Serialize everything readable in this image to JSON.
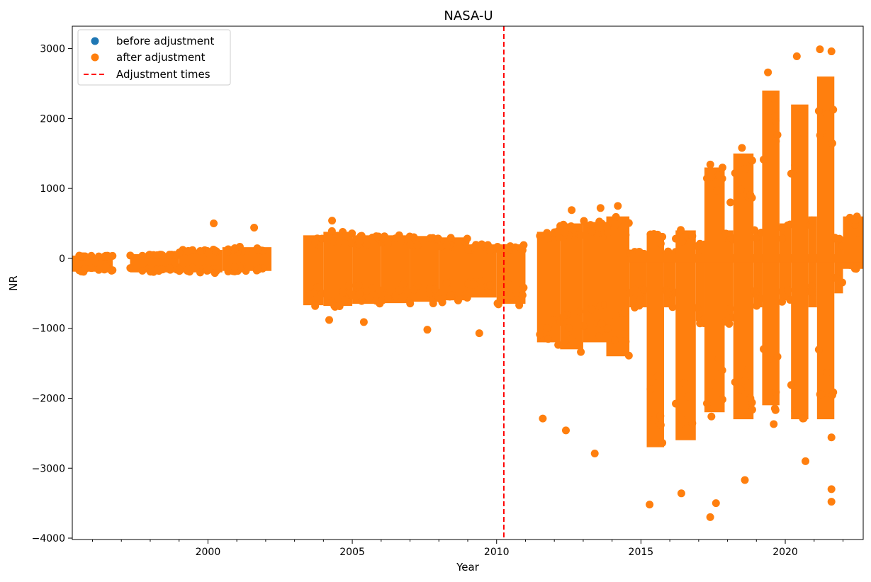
{
  "chart_data": {
    "type": "scatter",
    "title": "NASA-U",
    "xlabel": "Year",
    "ylabel": "NR",
    "xlim": [
      1995.3,
      2022.7
    ],
    "ylim": [
      -4020,
      3320
    ],
    "x_ticks": [
      2000,
      2005,
      2010,
      2015,
      2020
    ],
    "y_ticks": [
      -4000,
      -3000,
      -2000,
      -1000,
      0,
      1000,
      2000,
      3000
    ],
    "x_tick_labels": [
      "2000",
      "2005",
      "2010",
      "2015",
      "2020"
    ],
    "y_tick_labels": [
      "−4000",
      "−3000",
      "−2000",
      "−1000",
      "0",
      "1000",
      "2000",
      "3000"
    ],
    "minor_x_ticks": true,
    "grid": false,
    "legend_position": "top-left",
    "legend": [
      {
        "label": "before adjustment",
        "marker": "dot",
        "color": "#1f77b4"
      },
      {
        "label": "after adjustment",
        "marker": "dot",
        "color": "#ff7f0e"
      },
      {
        "label": "Adjustment times",
        "marker": "dashed-line",
        "color": "#ff0000"
      }
    ],
    "adjustment_times": [
      2010.25
    ],
    "series": [
      {
        "name": "before adjustment",
        "color": "#1f77b4",
        "note_hidden_beneath": true
      },
      {
        "name": "after adjustment",
        "color": "#ff7f0e",
        "envelope": [
          {
            "x0": 1995.3,
            "x1": 1996.7,
            "low": -190,
            "high": 40
          },
          {
            "x0": 1997.3,
            "x1": 1999.0,
            "low": -200,
            "high": 60
          },
          {
            "x0": 1999.0,
            "x1": 2000.5,
            "low": -200,
            "high": 120
          },
          {
            "x0": 2000.5,
            "x1": 2002.2,
            "low": -180,
            "high": 160
          },
          {
            "x0": 2003.3,
            "x1": 2004.0,
            "low": -670,
            "high": 330
          },
          {
            "x0": 2004.0,
            "x1": 2005.0,
            "low": -680,
            "high": 380
          },
          {
            "x0": 2005.0,
            "x1": 2006.0,
            "low": -650,
            "high": 330
          },
          {
            "x0": 2006.0,
            "x1": 2007.0,
            "low": -640,
            "high": 330
          },
          {
            "x0": 2007.0,
            "x1": 2008.0,
            "low": -620,
            "high": 320
          },
          {
            "x0": 2008.0,
            "x1": 2009.0,
            "low": -600,
            "high": 300
          },
          {
            "x0": 2009.0,
            "x1": 2010.0,
            "low": -560,
            "high": 200
          },
          {
            "x0": 2010.0,
            "x1": 2011.0,
            "low": -650,
            "high": 200
          },
          {
            "x0": 2011.4,
            "x1": 2012.2,
            "low": -1200,
            "high": 380
          },
          {
            "x0": 2012.2,
            "x1": 2013.0,
            "low": -1300,
            "high": 500
          },
          {
            "x0": 2013.0,
            "x1": 2013.8,
            "low": -1200,
            "high": 520
          },
          {
            "x0": 2013.8,
            "x1": 2014.6,
            "low": -1400,
            "high": 600
          },
          {
            "x0": 2014.6,
            "x1": 2015.2,
            "low": -700,
            "high": 100
          },
          {
            "x0": 2015.2,
            "x1": 2015.8,
            "low": -2700,
            "high": 350
          },
          {
            "x0": 2015.8,
            "x1": 2016.2,
            "low": -700,
            "high": 100
          },
          {
            "x0": 2016.2,
            "x1": 2016.9,
            "low": -2600,
            "high": 400
          },
          {
            "x0": 2016.9,
            "x1": 2017.2,
            "low": -900,
            "high": 200
          },
          {
            "x0": 2017.2,
            "x1": 2017.9,
            "low": -2200,
            "high": 1300
          },
          {
            "x0": 2017.9,
            "x1": 2018.2,
            "low": -900,
            "high": 400
          },
          {
            "x0": 2018.2,
            "x1": 2018.9,
            "low": -2300,
            "high": 1500
          },
          {
            "x0": 2018.9,
            "x1": 2019.2,
            "low": -700,
            "high": 400
          },
          {
            "x0": 2019.2,
            "x1": 2019.8,
            "low": -2100,
            "high": 2400
          },
          {
            "x0": 2019.8,
            "x1": 2020.2,
            "low": -600,
            "high": 500
          },
          {
            "x0": 2020.2,
            "x1": 2020.8,
            "low": -2300,
            "high": 2200
          },
          {
            "x0": 2020.8,
            "x1": 2021.1,
            "low": -700,
            "high": 600
          },
          {
            "x0": 2021.1,
            "x1": 2021.7,
            "low": -2300,
            "high": 2600
          },
          {
            "x0": 2021.7,
            "x1": 2022.0,
            "low": -500,
            "high": 300
          },
          {
            "x0": 2022.0,
            "x1": 2022.7,
            "low": -150,
            "high": 600
          }
        ],
        "outliers": [
          [
            2000.2,
            500
          ],
          [
            2001.6,
            440
          ],
          [
            2004.3,
            540
          ],
          [
            2004.2,
            -880
          ],
          [
            2005.4,
            -910
          ],
          [
            2007.6,
            -1020
          ],
          [
            2009.4,
            -1070
          ],
          [
            2012.6,
            690
          ],
          [
            2013.4,
            -2790
          ],
          [
            2013.6,
            720
          ],
          [
            2014.2,
            750
          ],
          [
            2011.6,
            -2290
          ],
          [
            2012.4,
            -2460
          ],
          [
            2015.3,
            -3520
          ],
          [
            2016.4,
            -3360
          ],
          [
            2017.4,
            -3700
          ],
          [
            2017.6,
            -3500
          ],
          [
            2018.6,
            -3170
          ],
          [
            2019.4,
            2660
          ],
          [
            2019.6,
            2290
          ],
          [
            2019.6,
            -2370
          ],
          [
            2020.4,
            2890
          ],
          [
            2020.7,
            -2900
          ],
          [
            2021.2,
            2990
          ],
          [
            2021.6,
            2960
          ],
          [
            2021.6,
            -3300
          ],
          [
            2021.6,
            -3480
          ],
          [
            2021.6,
            -2560
          ],
          [
            2018.1,
            800
          ],
          [
            2018.5,
            1580
          ]
        ]
      }
    ]
  }
}
